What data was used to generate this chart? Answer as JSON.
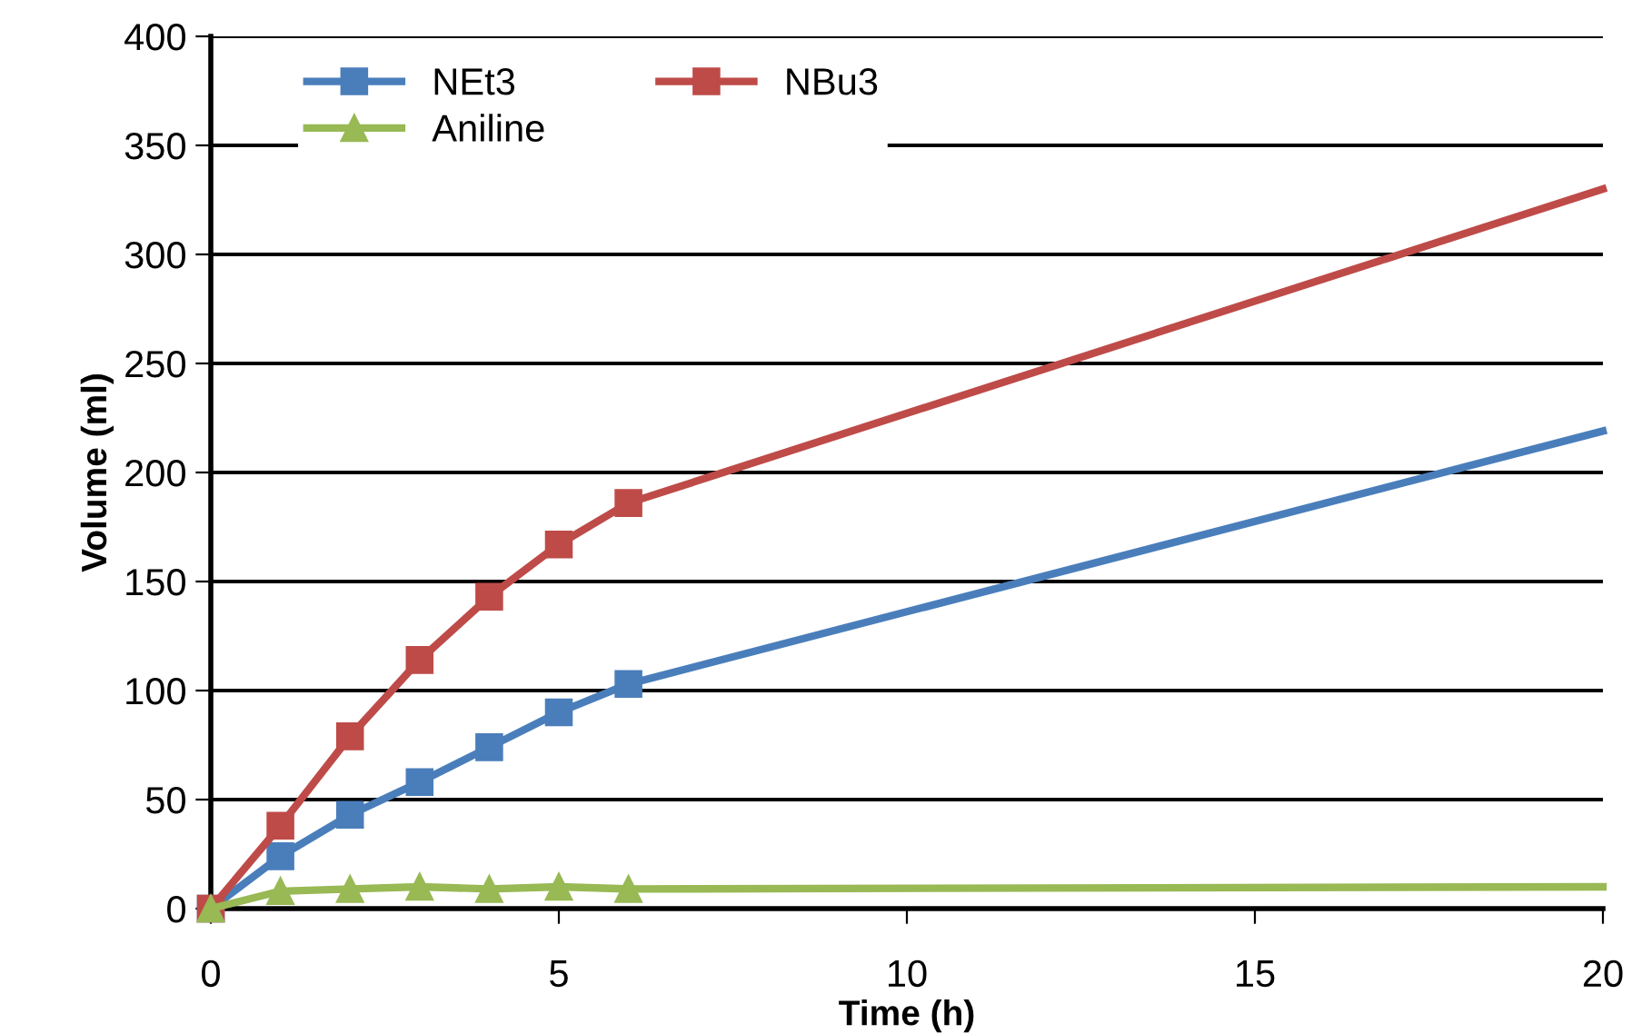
{
  "chart_data": {
    "type": "line",
    "xlabel": "Time (h)",
    "ylabel": "Volume (ml)",
    "xlim": [
      0,
      20
    ],
    "xticks": [
      0,
      5,
      10,
      15,
      20
    ],
    "ylim": [
      0,
      400
    ],
    "yticks": [
      0,
      50,
      100,
      150,
      200,
      250,
      300,
      350,
      400
    ],
    "grid": "y",
    "legend": "top left",
    "marker": "square",
    "series": [
      {
        "name": "NEt3",
        "color": "#4a7ebb",
        "x": [
          0,
          1,
          2,
          3,
          4,
          5,
          6
        ],
        "values": [
          0,
          24,
          43,
          58,
          74,
          90,
          103
        ]
      },
      {
        "name": "NBu3",
        "color": "#be4b48",
        "x": [
          0,
          1,
          2,
          3,
          4,
          5,
          6
        ],
        "values": [
          0,
          38,
          79,
          114,
          143,
          167,
          186
        ]
      },
      {
        "name": "Aniline",
        "color": "#98b954",
        "marker": "triangle",
        "x": [
          0,
          1,
          2,
          3,
          4,
          5,
          6
        ],
        "values": [
          0,
          8,
          9,
          10,
          9,
          10,
          9
        ]
      },
      {
        "color": "#4a7ebb",
        "marker": "none",
        "x": [
          6,
          20
        ],
        "values": [
          103,
          219
        ]
      },
      {
        "color": "#be4b48",
        "marker": "none",
        "x": [
          6,
          20
        ],
        "values": [
          186,
          330
        ]
      },
      {
        "color": "#98b954",
        "marker": "none",
        "x": [
          6,
          20
        ],
        "values": [
          9,
          10
        ]
      }
    ]
  }
}
